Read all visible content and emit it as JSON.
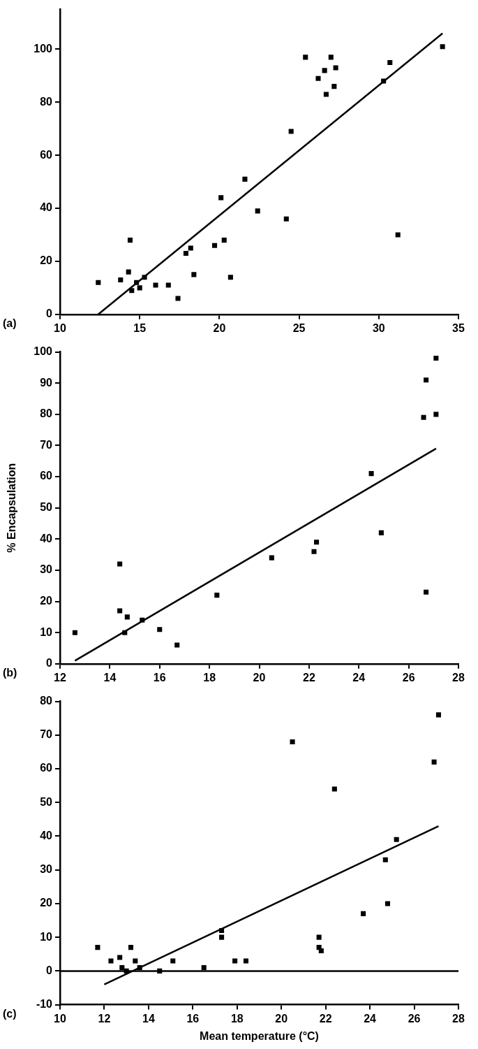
{
  "chart_data": [
    {
      "type": "scatter",
      "panel": "(a)",
      "grid": false,
      "xlim": [
        10,
        35
      ],
      "xticks": [
        10,
        15,
        20,
        25,
        30,
        35
      ],
      "ylim": [
        0,
        115
      ],
      "yticks": [
        0,
        20,
        40,
        60,
        80,
        100
      ],
      "series": [
        {
          "type": "scatter",
          "marker": "square",
          "color": "#000000",
          "x": [
            12.4,
            13.8,
            14.4,
            14.3,
            14.5,
            14.8,
            15.0,
            15.3,
            16.0,
            16.8,
            17.4,
            17.9,
            18.2,
            18.4,
            19.7,
            20.1,
            20.3,
            20.7,
            21.6,
            22.4,
            24.2,
            24.5,
            25.4,
            26.2,
            26.6,
            26.7,
            27.0,
            27.2,
            27.3,
            30.3,
            30.7,
            31.2,
            34.0
          ],
          "values": [
            12,
            13,
            28,
            16,
            9,
            12,
            10,
            14,
            11,
            11,
            6,
            23,
            25,
            15,
            26,
            44,
            28,
            14,
            51,
            39,
            36,
            69,
            97,
            89,
            92,
            83,
            97,
            86,
            93,
            88,
            95,
            30,
            101
          ]
        },
        {
          "type": "line",
          "line_style": "solid",
          "color": "#000000",
          "x": [
            12.4,
            34.0
          ],
          "values": [
            0,
            106
          ]
        }
      ]
    },
    {
      "type": "scatter",
      "panel": "(b)",
      "grid": false,
      "y_label": "% Encapsulation",
      "xlim": [
        12,
        28
      ],
      "xticks": [
        12,
        14,
        16,
        18,
        20,
        22,
        24,
        26,
        28
      ],
      "ylim": [
        0,
        100
      ],
      "yticks": [
        0,
        10,
        20,
        30,
        40,
        50,
        60,
        70,
        80,
        90,
        100
      ],
      "series": [
        {
          "type": "scatter",
          "marker": "square",
          "color": "#000000",
          "x": [
            12.6,
            14.4,
            14.4,
            14.6,
            14.7,
            15.3,
            16.0,
            16.7,
            18.3,
            20.5,
            22.2,
            22.3,
            24.5,
            24.9,
            26.6,
            26.7,
            26.7,
            27.1,
            27.1
          ],
          "values": [
            10,
            32,
            17,
            10,
            15,
            14,
            11,
            6,
            22,
            34,
            36,
            39,
            61,
            42,
            79,
            91,
            23,
            98,
            80
          ]
        },
        {
          "type": "line",
          "line_style": "solid",
          "color": "#000000",
          "x": [
            12.6,
            27.1
          ],
          "values": [
            1,
            69
          ]
        }
      ]
    },
    {
      "type": "scatter",
      "panel": "(c)",
      "grid": false,
      "x_label": "Mean temperature (°C)",
      "xlim": [
        10,
        28
      ],
      "xticks": [
        10,
        12,
        14,
        16,
        18,
        20,
        22,
        24,
        26,
        28
      ],
      "ylim": [
        -10,
        80
      ],
      "yticks": [
        -10,
        0,
        10,
        20,
        30,
        40,
        50,
        60,
        70,
        80
      ],
      "series": [
        {
          "type": "scatter",
          "marker": "square",
          "color": "#000000",
          "x": [
            11.7,
            12.3,
            12.7,
            12.8,
            13.0,
            13.2,
            13.4,
            13.6,
            14.5,
            15.1,
            16.5,
            17.3,
            17.3,
            17.9,
            18.4,
            20.5,
            21.7,
            21.7,
            21.8,
            22.4,
            23.7,
            24.7,
            24.8,
            25.2,
            26.9,
            27.1
          ],
          "values": [
            7,
            3,
            4,
            1,
            0,
            7,
            3,
            1,
            0,
            3,
            1,
            12,
            10,
            3,
            3,
            68,
            10,
            7,
            6,
            54,
            17,
            33,
            20,
            39,
            62,
            76
          ]
        },
        {
          "type": "line",
          "line_style": "solid",
          "color": "#000000",
          "x": [
            12.0,
            27.1
          ],
          "values": [
            -4,
            43
          ]
        },
        {
          "type": "line",
          "line_style": "solid",
          "color": "#000000",
          "x": [
            10,
            28
          ],
          "values": [
            0,
            0
          ]
        }
      ]
    }
  ]
}
